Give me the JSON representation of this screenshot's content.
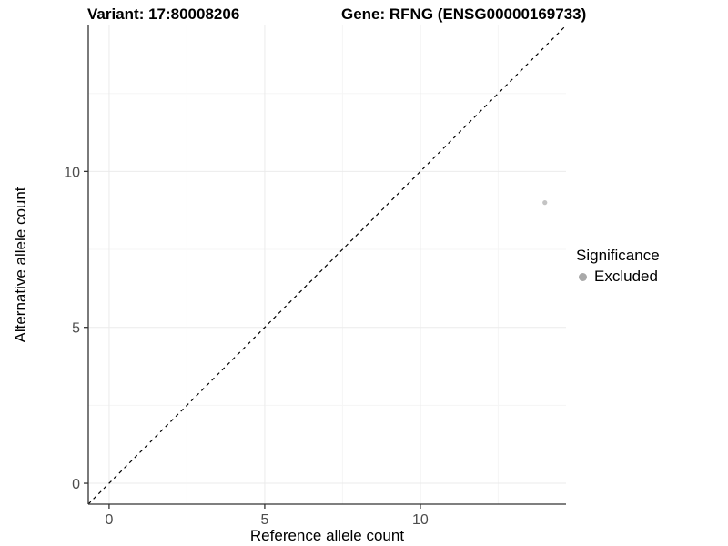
{
  "header": {
    "variant_title": "Variant: 17:80008206",
    "gene_title": "Gene: RFNG (ENSG00000169733)"
  },
  "chart_data": {
    "type": "scatter",
    "xlabel": "Reference allele count",
    "ylabel": "Alternative allele count",
    "xlim": [
      -0.67,
      14.68
    ],
    "ylim": [
      -0.67,
      14.68
    ],
    "x_ticks": [
      0,
      5,
      10
    ],
    "y_ticks": [
      0,
      5,
      10
    ],
    "x_minor_ticks": [
      2.5,
      7.5,
      12.5
    ],
    "y_minor_ticks": [
      2.5,
      7.5,
      12.5
    ],
    "grid": true,
    "reference_line": {
      "type": "identity",
      "slope": 1,
      "intercept": 0,
      "style": "dashed",
      "color": "#000000"
    },
    "series": [
      {
        "name": "Excluded",
        "color": "#c4c4c4",
        "points": [
          {
            "x": 14,
            "y": 9
          }
        ]
      }
    ],
    "legend": {
      "title": "Significance",
      "position": "right",
      "entries": [
        {
          "label": "Excluded",
          "color": "#a9a9a9"
        }
      ]
    }
  },
  "colors": {
    "axis_line": "#333333",
    "tick_text": "#4d4d4d",
    "axis_title_text": "#000000",
    "grid_major": "#ebebeb",
    "grid_minor": "#f5f5f5",
    "background": "#ffffff"
  }
}
